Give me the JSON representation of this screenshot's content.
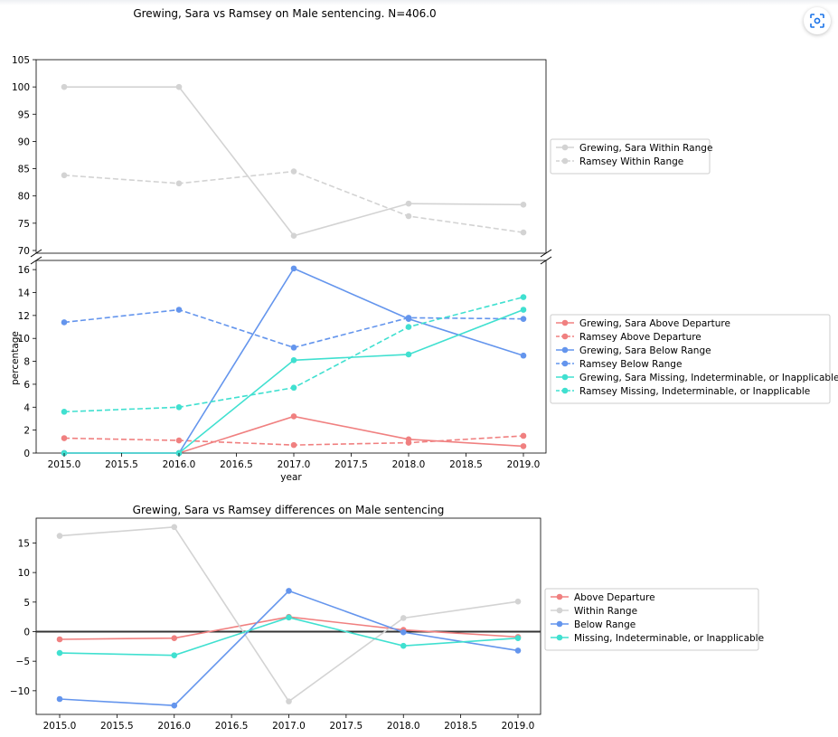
{
  "toolbar": {
    "capture_icon": "scan-camera-icon",
    "accent": "#1a73e8"
  },
  "colors": {
    "above": "#f08080",
    "within": "#d3d3d3",
    "below": "#6495ed",
    "missing": "#40e0d0",
    "zero_line": "#333333"
  },
  "chart_data": [
    {
      "type": "line",
      "title": "Grewing, Sara vs Ramsey on Male sentencing.  N=406.0",
      "xlabel": "year",
      "ylabel": "percentage",
      "x": [
        2015,
        2016,
        2017,
        2018,
        2019
      ],
      "x_ticks": [
        "2015.0",
        "2015.5",
        "2016.0",
        "2016.5",
        "2017.0",
        "2017.5",
        "2018.0",
        "2018.5",
        "2019.0"
      ],
      "broken_axis": true,
      "upper": {
        "ylim": [
          69.5,
          105
        ],
        "y_ticks": [
          "70",
          "75",
          "80",
          "85",
          "90",
          "95",
          "100",
          "105"
        ],
        "legend": "right",
        "series": [
          {
            "name": "Grewing, Sara Within Range",
            "key": "within",
            "dash": false,
            "values": [
              100,
              100,
              72.7,
              78.6,
              78.4
            ]
          },
          {
            "name": "Ramsey Within Range",
            "key": "within",
            "dash": true,
            "values": [
              83.8,
              82.3,
              84.5,
              76.3,
              73.3
            ]
          }
        ]
      },
      "lower": {
        "ylim": [
          0,
          16.8
        ],
        "y_ticks": [
          "0",
          "2",
          "4",
          "6",
          "8",
          "10",
          "12",
          "14",
          "16"
        ],
        "legend": "right",
        "series": [
          {
            "name": "Grewing, Sara Above Departure",
            "key": "above",
            "dash": false,
            "values": [
              0,
              0,
              3.2,
              1.2,
              0.6
            ]
          },
          {
            "name": "Ramsey Above Departure",
            "key": "above",
            "dash": true,
            "values": [
              1.3,
              1.1,
              0.7,
              0.9,
              1.5
            ]
          },
          {
            "name": "Grewing, Sara Below Range",
            "key": "below",
            "dash": false,
            "values": [
              0,
              0,
              16.1,
              11.7,
              8.5
            ]
          },
          {
            "name": "Ramsey Below Range",
            "key": "below",
            "dash": true,
            "values": [
              11.4,
              12.5,
              9.2,
              11.8,
              11.7
            ]
          },
          {
            "name": "Grewing, Sara Missing, Indeterminable, or Inapplicable",
            "key": "missing",
            "dash": false,
            "values": [
              0,
              0,
              8.1,
              8.6,
              12.5
            ]
          },
          {
            "name": "Ramsey Missing, Indeterminable, or Inapplicable",
            "key": "missing",
            "dash": true,
            "values": [
              3.6,
              4.0,
              5.7,
              11.0,
              13.6
            ]
          }
        ]
      }
    },
    {
      "type": "line",
      "title": "Grewing, Sara vs Ramsey differences on Male sentencing",
      "xlabel": "",
      "ylabel": "",
      "x": [
        2015,
        2016,
        2017,
        2018,
        2019
      ],
      "x_ticks": [
        "2015.0",
        "2015.5",
        "2016.0",
        "2016.5",
        "2017.0",
        "2017.5",
        "2018.0",
        "2018.5",
        "2019.0"
      ],
      "ylim": [
        -14,
        19.2
      ],
      "y_ticks": [
        "15",
        "10",
        "5",
        "0",
        "−5",
        "−10"
      ],
      "zero_line": true,
      "legend": "right",
      "series": [
        {
          "name": "Above Departure",
          "key": "above",
          "values": [
            -1.3,
            -1.1,
            2.5,
            0.3,
            -0.9
          ]
        },
        {
          "name": "Within Range",
          "key": "within",
          "values": [
            16.2,
            17.7,
            -11.8,
            2.3,
            5.1
          ]
        },
        {
          "name": "Below Range",
          "key": "below",
          "values": [
            -11.4,
            -12.5,
            6.9,
            -0.1,
            -3.2
          ]
        },
        {
          "name": "Missing, Indeterminable, or Inapplicable",
          "key": "missing",
          "values": [
            -3.6,
            -4.0,
            2.4,
            -2.4,
            -1.1
          ]
        }
      ]
    }
  ]
}
